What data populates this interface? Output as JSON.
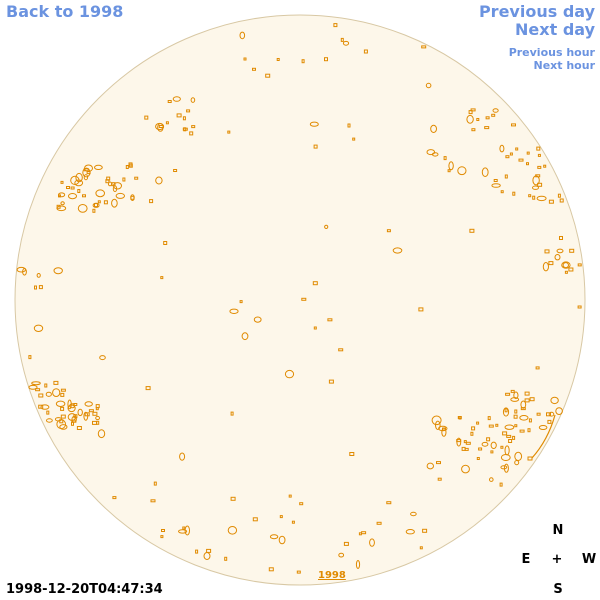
{
  "nav": {
    "back_label": "Back to 1998",
    "prev_day_label": "Previous day",
    "next_day_label": "Next day",
    "prev_hour_label": "Previous hour",
    "next_hour_label": "Next hour"
  },
  "timestamp": "1998-12-20T04:47:34",
  "compass": {
    "north": "N",
    "east": "E",
    "center": "+",
    "west": "W",
    "south": "S"
  },
  "disk_year_label": "1998",
  "colors": {
    "link": "#6b93e0",
    "disk_fill": "#fdf7ea",
    "disk_edge": "#d8c8a4",
    "contour": "#e08a00"
  }
}
